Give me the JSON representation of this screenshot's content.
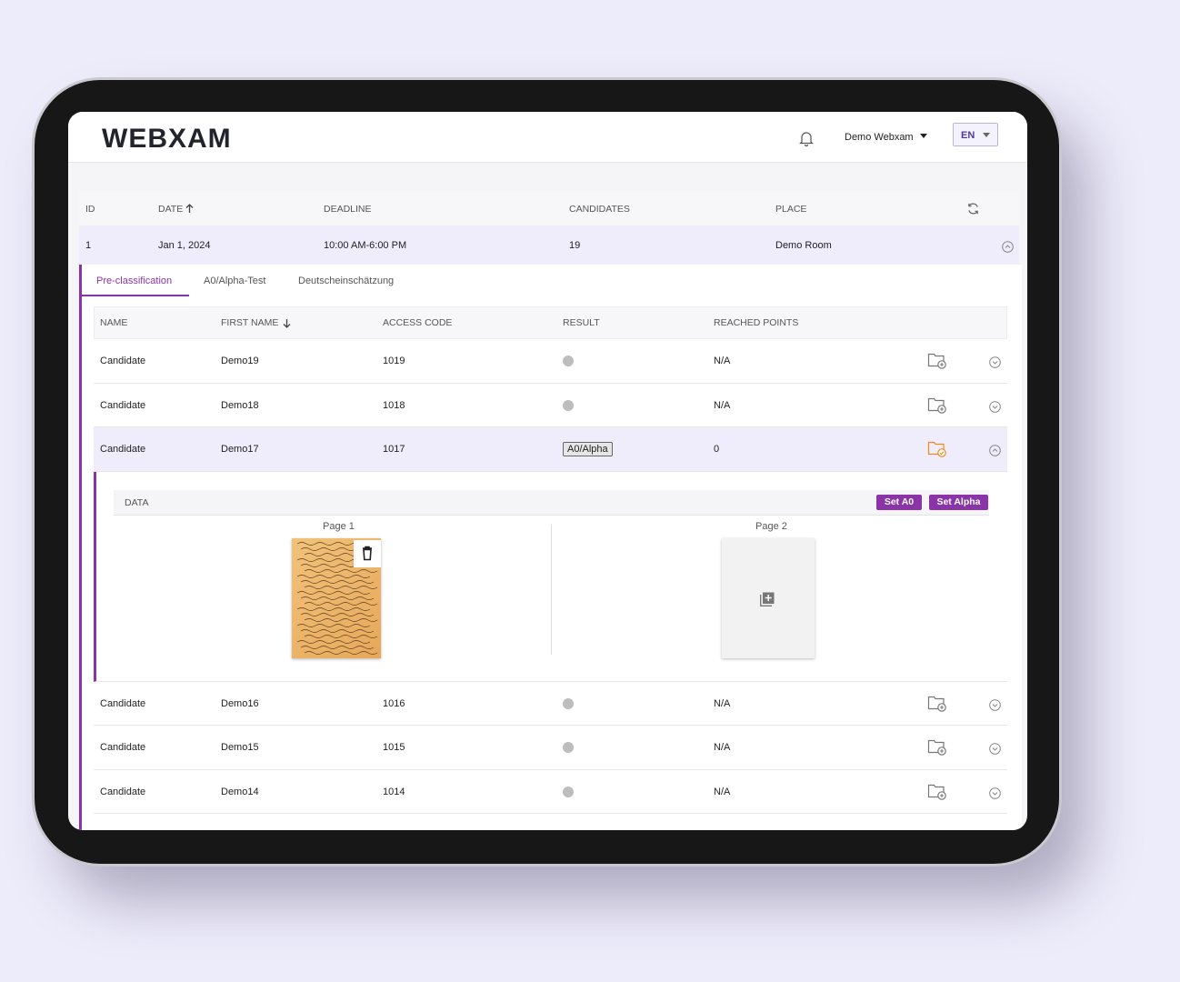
{
  "header": {
    "logo": "WEBXAM",
    "user": "Demo Webxam",
    "language": "EN"
  },
  "exams": {
    "columns": [
      "ID",
      "DATE",
      "DEADLINE",
      "CANDIDATES",
      "PLACE"
    ],
    "rows": [
      {
        "id": 1,
        "date": "Jan 1, 2024",
        "deadline": "10:00 AM-6:00 PM",
        "candidates": 19,
        "place": "Demo Room"
      }
    ]
  },
  "tabs": [
    "Pre-classification",
    "A0/Alpha-Test",
    "Deutscheinschätzung"
  ],
  "candidates": {
    "columns": [
      "NAME",
      "FIRST NAME",
      "ACCESS CODE",
      "RESULT",
      "REACHED POINTS"
    ],
    "rows": [
      {
        "name": "Candidate",
        "first_name": "Demo19",
        "access_code": "1019",
        "result": null,
        "points": "N/A"
      },
      {
        "name": "Candidate",
        "first_name": "Demo18",
        "access_code": "1018",
        "result": null,
        "points": "N/A"
      },
      {
        "name": "Candidate",
        "first_name": "Demo17",
        "access_code": "1017",
        "result": "A0/Alpha",
        "points": 0
      },
      {
        "name": "Candidate",
        "first_name": "Demo16",
        "access_code": "1016",
        "result": null,
        "points": "N/A"
      },
      {
        "name": "Candidate",
        "first_name": "Demo15",
        "access_code": "1015",
        "result": null,
        "points": "N/A"
      },
      {
        "name": "Candidate",
        "first_name": "Demo14",
        "access_code": "1014",
        "result": null,
        "points": "N/A"
      }
    ]
  },
  "detail": {
    "title": "DATA",
    "buttons": [
      "Set A0",
      "Set Alpha"
    ],
    "pages": [
      "Page 1",
      "Page 2"
    ]
  }
}
